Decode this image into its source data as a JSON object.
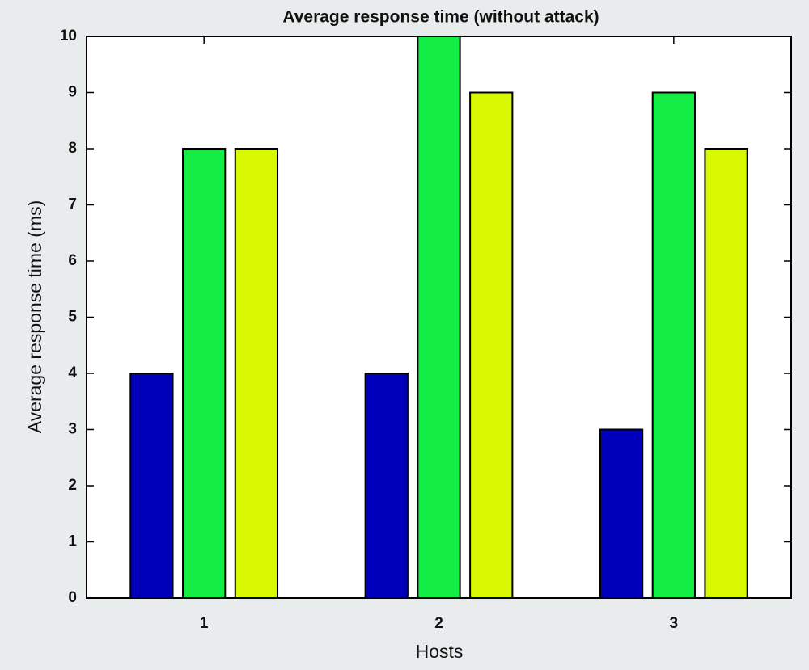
{
  "chart_data": {
    "type": "bar",
    "title": "Average response time (without attack)",
    "x_label": "Hosts",
    "y_label": "Average response time (ms)",
    "categories": [
      "1",
      "2",
      "3"
    ],
    "series": [
      {
        "color": "#0000bb",
        "values": [
          4,
          4,
          3
        ]
      },
      {
        "color": "#14ee44",
        "values": [
          8,
          10,
          9
        ]
      },
      {
        "color": "#d8f800",
        "values": [
          8,
          9,
          8
        ]
      }
    ],
    "ylim": [
      0,
      10
    ],
    "yticks": [
      0,
      1,
      2,
      3,
      4,
      5,
      6,
      7,
      8,
      9,
      10
    ],
    "grid": false
  }
}
